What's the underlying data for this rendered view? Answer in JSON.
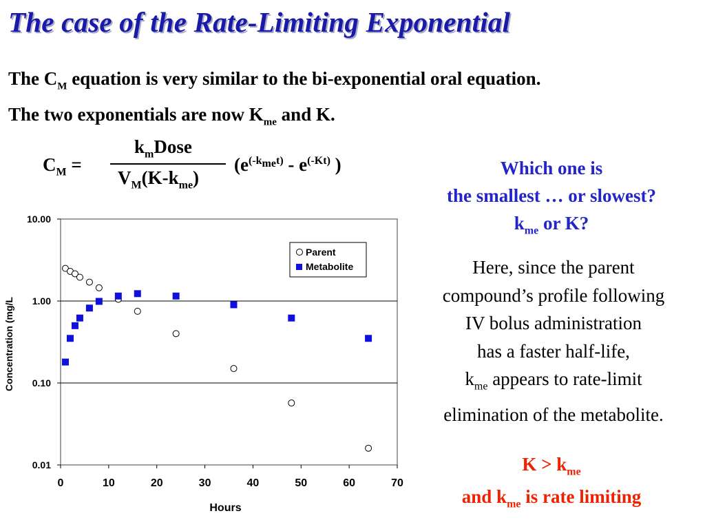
{
  "slide": {
    "title": "The case of the Rate-Limiting Exponential",
    "intro": {
      "line1_a": "The C",
      "line1_sub": "M",
      "line1_b": " equation is very similar to the bi-exponential oral equation.",
      "line2_a": "The two exponentials are now K",
      "line2_sub": "me",
      "line2_b": " and K."
    },
    "equation": {
      "lhs": "C",
      "lhs_sub": "M",
      "eq_sign": " =",
      "num_k": "k",
      "num_k_sub": "m",
      "num_rest": "Dose",
      "den_v": "V",
      "den_v_sub": "M",
      "den_rest": "(K-k",
      "den_me_sub": "me",
      "den_close": ")",
      "open": "(e",
      "exp1": "(-k",
      "exp1_sub": "me",
      "exp1_t": "t",
      "exp1_close": ")",
      "minus": " - e",
      "exp2": "(-Kt",
      "exp2_close": ")",
      "close": " )"
    },
    "question": {
      "line1": "Which one is",
      "line2": "the smallest … or slowest?",
      "line3_k": "k",
      "line3_sub": "me",
      "line3_rest": " or K?"
    },
    "explanation": {
      "line1": "Here, since the parent",
      "line2": "compound’s profile following",
      "line3": "IV bolus administration",
      "line4": "has a faster half-life,",
      "line5_k": "k",
      "line5_sub": "me",
      "line5_rest": " appears to rate-limit",
      "line6": "elimination of the metabolite."
    },
    "conclusion": {
      "line1_a": "K > k",
      "line1_sub": "me",
      "line2_a": "and k",
      "line2_sub": "me",
      "line2_b": " is rate limiting"
    }
  },
  "colors": {
    "title": "#1a1aa8",
    "question": "#2424c8",
    "conclusion": "#ee2200",
    "metabolite": "#1010dd",
    "parent_edge": "#000000"
  },
  "chart_data": {
    "type": "scatter",
    "title": "",
    "xlabel": "Hours",
    "ylabel": "Concentration (mg/L",
    "x_scale": "linear",
    "y_scale": "log",
    "xlim": [
      0,
      70
    ],
    "ylim": [
      0.01,
      10
    ],
    "x_ticks": [
      0,
      10,
      20,
      30,
      40,
      50,
      60,
      70
    ],
    "y_ticks": [
      {
        "value": 10,
        "label": "10.00"
      },
      {
        "value": 1,
        "label": "1.00"
      },
      {
        "value": 0.1,
        "label": "0.10"
      },
      {
        "value": 0.01,
        "label": "0.01"
      }
    ],
    "grid": "horizontal",
    "legend": "top-right",
    "series": [
      {
        "name": "Parent",
        "marker": "open-circle",
        "points": [
          {
            "x": 1,
            "y": 2.5
          },
          {
            "x": 2,
            "y": 2.3
          },
          {
            "x": 3,
            "y": 2.15
          },
          {
            "x": 4,
            "y": 1.95
          },
          {
            "x": 6,
            "y": 1.7
          },
          {
            "x": 8,
            "y": 1.45
          },
          {
            "x": 12,
            "y": 1.05
          },
          {
            "x": 16,
            "y": 0.75
          },
          {
            "x": 24,
            "y": 0.4
          },
          {
            "x": 36,
            "y": 0.15
          },
          {
            "x": 48,
            "y": 0.057
          },
          {
            "x": 64,
            "y": 0.016
          }
        ]
      },
      {
        "name": "Metabolite",
        "marker": "filled-square",
        "points": [
          {
            "x": 1,
            "y": 0.18
          },
          {
            "x": 2,
            "y": 0.35
          },
          {
            "x": 3,
            "y": 0.5
          },
          {
            "x": 4,
            "y": 0.62
          },
          {
            "x": 6,
            "y": 0.82
          },
          {
            "x": 8,
            "y": 0.99
          },
          {
            "x": 12,
            "y": 1.15
          },
          {
            "x": 16,
            "y": 1.23
          },
          {
            "x": 24,
            "y": 1.15
          },
          {
            "x": 36,
            "y": 0.9
          },
          {
            "x": 48,
            "y": 0.62
          },
          {
            "x": 64,
            "y": 0.35
          }
        ]
      }
    ]
  }
}
